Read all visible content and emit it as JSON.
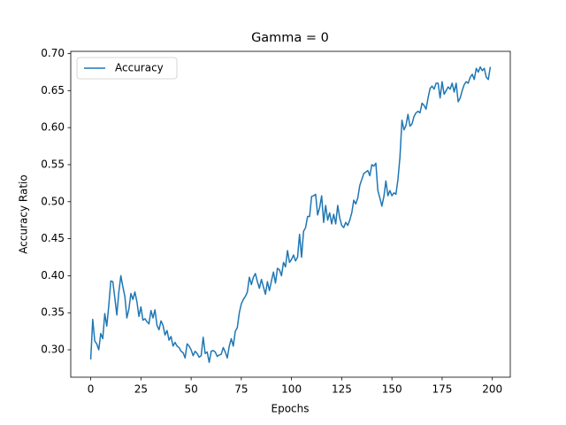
{
  "chart_data": {
    "type": "line",
    "title": "Gamma = 0",
    "xlabel": "Epochs",
    "ylabel": "Accuracy Ratio",
    "legend": "upper left",
    "grid": false,
    "x": [
      0,
      1,
      2,
      3,
      4,
      5,
      6,
      7,
      8,
      9,
      10,
      11,
      12,
      13,
      14,
      15,
      16,
      17,
      18,
      19,
      20,
      21,
      22,
      23,
      24,
      25,
      26,
      27,
      28,
      29,
      30,
      31,
      32,
      33,
      34,
      35,
      36,
      37,
      38,
      39,
      40,
      41,
      42,
      43,
      44,
      45,
      46,
      47,
      48,
      49,
      50,
      51,
      52,
      53,
      54,
      55,
      56,
      57,
      58,
      59,
      60,
      61,
      62,
      63,
      64,
      65,
      66,
      67,
      68,
      69,
      70,
      71,
      72,
      73,
      74,
      75,
      76,
      77,
      78,
      79,
      80,
      81,
      82,
      83,
      84,
      85,
      86,
      87,
      88,
      89,
      90,
      91,
      92,
      93,
      94,
      95,
      96,
      97,
      98,
      99,
      100,
      101,
      102,
      103,
      104,
      105,
      106,
      107,
      108,
      109,
      110,
      111,
      112,
      113,
      114,
      115,
      116,
      117,
      118,
      119,
      120,
      121,
      122,
      123,
      124,
      125,
      126,
      127,
      128,
      129,
      130,
      131,
      132,
      133,
      134,
      135,
      136,
      137,
      138,
      139,
      140,
      141,
      142,
      143,
      144,
      145,
      146,
      147,
      148,
      149,
      150,
      151,
      152,
      153,
      154,
      155,
      156,
      157,
      158,
      159,
      160,
      161,
      162,
      163,
      164,
      165,
      166,
      167,
      168,
      169,
      170,
      171,
      172,
      173,
      174,
      175,
      176,
      177,
      178,
      179,
      180,
      181,
      182,
      183,
      184,
      185,
      186,
      187,
      188,
      189,
      190,
      191,
      192,
      193,
      194,
      195,
      196,
      197,
      198,
      199
    ],
    "series": [
      {
        "name": "Accuracy",
        "color": "#1f77b4",
        "values": [
          0.287,
          0.341,
          0.312,
          0.308,
          0.3,
          0.322,
          0.315,
          0.349,
          0.332,
          0.36,
          0.393,
          0.392,
          0.37,
          0.347,
          0.378,
          0.4,
          0.385,
          0.372,
          0.343,
          0.355,
          0.376,
          0.368,
          0.378,
          0.365,
          0.345,
          0.358,
          0.34,
          0.342,
          0.338,
          0.335,
          0.353,
          0.343,
          0.354,
          0.333,
          0.327,
          0.339,
          0.333,
          0.32,
          0.326,
          0.313,
          0.318,
          0.305,
          0.31,
          0.305,
          0.303,
          0.298,
          0.296,
          0.289,
          0.308,
          0.305,
          0.3,
          0.292,
          0.298,
          0.295,
          0.29,
          0.292,
          0.317,
          0.295,
          0.297,
          0.283,
          0.298,
          0.299,
          0.297,
          0.291,
          0.293,
          0.294,
          0.303,
          0.297,
          0.289,
          0.305,
          0.315,
          0.305,
          0.325,
          0.33,
          0.35,
          0.362,
          0.368,
          0.372,
          0.378,
          0.398,
          0.388,
          0.398,
          0.403,
          0.392,
          0.383,
          0.395,
          0.385,
          0.375,
          0.392,
          0.38,
          0.393,
          0.405,
          0.39,
          0.41,
          0.408,
          0.4,
          0.418,
          0.412,
          0.434,
          0.418,
          0.422,
          0.428,
          0.42,
          0.425,
          0.456,
          0.425,
          0.46,
          0.465,
          0.48,
          0.48,
          0.507,
          0.508,
          0.51,
          0.482,
          0.492,
          0.508,
          0.472,
          0.495,
          0.475,
          0.485,
          0.47,
          0.483,
          0.47,
          0.495,
          0.478,
          0.468,
          0.465,
          0.472,
          0.468,
          0.475,
          0.485,
          0.502,
          0.497,
          0.505,
          0.522,
          0.53,
          0.538,
          0.54,
          0.542,
          0.535,
          0.55,
          0.548,
          0.552,
          0.515,
          0.505,
          0.494,
          0.507,
          0.528,
          0.508,
          0.515,
          0.508,
          0.512,
          0.51,
          0.53,
          0.56,
          0.61,
          0.597,
          0.603,
          0.618,
          0.602,
          0.605,
          0.615,
          0.62,
          0.622,
          0.62,
          0.633,
          0.63,
          0.625,
          0.64,
          0.653,
          0.656,
          0.652,
          0.66,
          0.66,
          0.64,
          0.662,
          0.645,
          0.65,
          0.655,
          0.652,
          0.66,
          0.648,
          0.66,
          0.635,
          0.64,
          0.65,
          0.658,
          0.662,
          0.66,
          0.668,
          0.672,
          0.665,
          0.68,
          0.675,
          0.682,
          0.677,
          0.68,
          0.668,
          0.665,
          0.682
        ]
      }
    ],
    "xlim": [
      -9.95,
      208.95
    ],
    "ylim": [
      0.263,
      0.703
    ],
    "xticks": [
      0,
      25,
      50,
      75,
      100,
      125,
      150,
      175,
      200
    ],
    "yticks": [
      {
        "value": 0.3,
        "label": "0.30"
      },
      0.35,
      {
        "value": 0.4,
        "label": "0.40"
      },
      0.45,
      {
        "value": 0.5,
        "label": "0.50"
      },
      0.55,
      {
        "value": 0.6,
        "label": "0.60"
      },
      0.65,
      {
        "value": 0.7,
        "label": "0.70"
      }
    ]
  }
}
